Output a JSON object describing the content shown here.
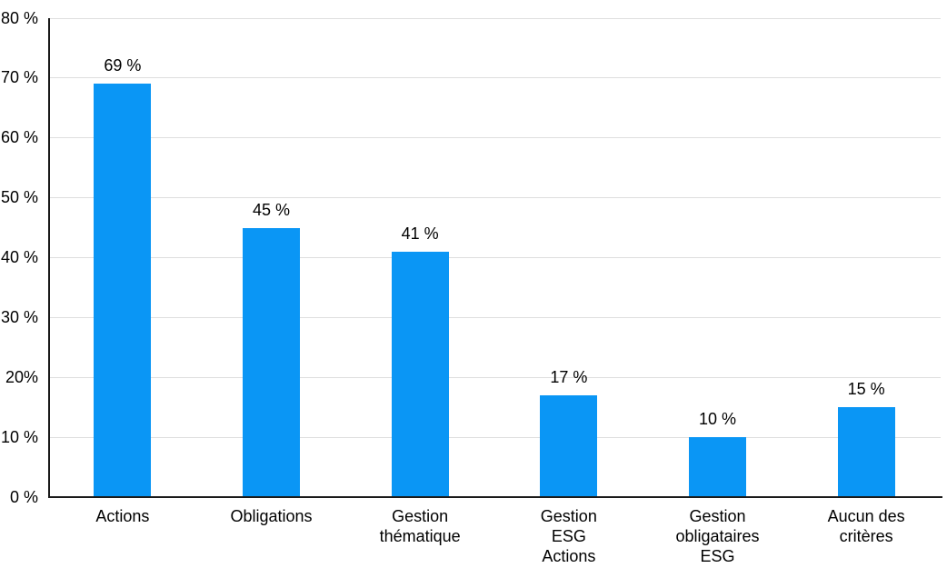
{
  "chart_data": {
    "type": "bar",
    "title": "",
    "categories": [
      "Actions",
      "Obligations",
      "Gestion thématique",
      "Gestion ESG Actions",
      "Gestion obligataires ESG",
      "Aucun des critères"
    ],
    "x_tick_labels": [
      "Actions",
      "Obligations",
      "Gestion\nthématique",
      "Gestion\nESG\nActions",
      "Gestion\nobligataires\nESG",
      "Aucun des\ncritères"
    ],
    "values": [
      69,
      45,
      41,
      17,
      10,
      15
    ],
    "value_labels": [
      "69 %",
      "45 %",
      "41 %",
      "17 %",
      "10 %",
      "15 %"
    ],
    "y_tick_values": [
      0,
      10,
      20,
      30,
      40,
      50,
      60,
      70,
      80
    ],
    "y_tick_labels": [
      "0 %",
      "10 %",
      "20%",
      "30 %",
      "40 %",
      "50 %",
      "60 %",
      "70 %",
      "80 %"
    ],
    "ylim": [
      0,
      80
    ],
    "grid": true,
    "legend": "none",
    "xlabel": "",
    "ylabel": "",
    "unit": "%"
  },
  "colors": {
    "bar": "#0A96F5",
    "gridline": "#DEDEDE",
    "axis": "#1A1A1A",
    "text": "#000000",
    "background": "#FFFFFF"
  }
}
